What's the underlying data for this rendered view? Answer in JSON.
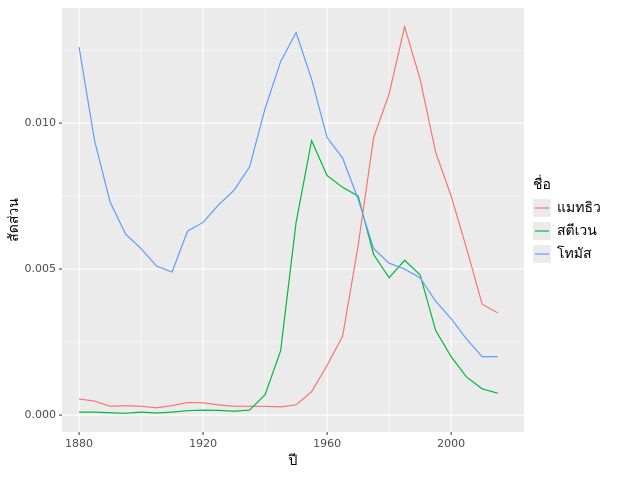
{
  "chart_data": {
    "type": "line",
    "x_label": "ปี",
    "y_label": "สัดส่วน",
    "legend_title": "ชื่อ",
    "x": [
      1880,
      1885,
      1890,
      1895,
      1900,
      1905,
      1910,
      1915,
      1920,
      1925,
      1930,
      1935,
      1940,
      1945,
      1950,
      1955,
      1960,
      1965,
      1970,
      1975,
      1980,
      1985,
      1990,
      1995,
      2000,
      2005,
      2010,
      2015
    ],
    "series": [
      {
        "name": "แมทธิว",
        "color": "#f8766d",
        "values": [
          0.00055,
          0.00048,
          0.0003,
          0.00032,
          0.0003,
          0.00025,
          0.00032,
          0.00043,
          0.00042,
          0.00035,
          0.0003,
          0.0003,
          0.0003,
          0.00028,
          0.00035,
          0.0008,
          0.0017,
          0.0027,
          0.0058,
          0.0095,
          0.011,
          0.0133,
          0.0115,
          0.009,
          0.0075,
          0.0057,
          0.0038,
          0.0035
        ]
      },
      {
        "name": "สตีเวน",
        "color": "#00ba38",
        "values": [
          0.0001,
          0.0001,
          8e-05,
          6e-05,
          0.0001,
          7e-05,
          0.0001,
          0.00015,
          0.00017,
          0.00016,
          0.00013,
          0.00017,
          0.0007,
          0.0022,
          0.0066,
          0.0094,
          0.0082,
          0.0078,
          0.0075,
          0.0055,
          0.0047,
          0.0053,
          0.0048,
          0.0029,
          0.002,
          0.0013,
          0.0009,
          0.00075
        ]
      },
      {
        "name": "โทมัส",
        "color": "#619cff",
        "values": [
          0.0126,
          0.0094,
          0.0073,
          0.0062,
          0.0057,
          0.0051,
          0.0049,
          0.0063,
          0.0066,
          0.0072,
          0.0077,
          0.0085,
          0.0105,
          0.0121,
          0.0131,
          0.0115,
          0.0095,
          0.0088,
          0.0074,
          0.0057,
          0.0052,
          0.005,
          0.0047,
          0.0039,
          0.0033,
          0.0026,
          0.002,
          0.002
        ]
      }
    ],
    "xlim": [
      1874.5,
      2023.5
    ],
    "ylim": [
      -0.00058,
      0.01394
    ],
    "xticks": [
      1880,
      1920,
      1960,
      2000
    ],
    "yticks": [
      {
        "value": 0,
        "label": "0.000"
      },
      {
        "value": 0.005,
        "label": "0.005"
      },
      {
        "value": 0.01,
        "label": "0.010"
      }
    ],
    "minor_xticks": [
      1900,
      1940,
      1980
    ],
    "minor_yticks": [
      0.0025,
      0.0075,
      0.0125
    ],
    "grid": true,
    "legend_position": "right"
  }
}
